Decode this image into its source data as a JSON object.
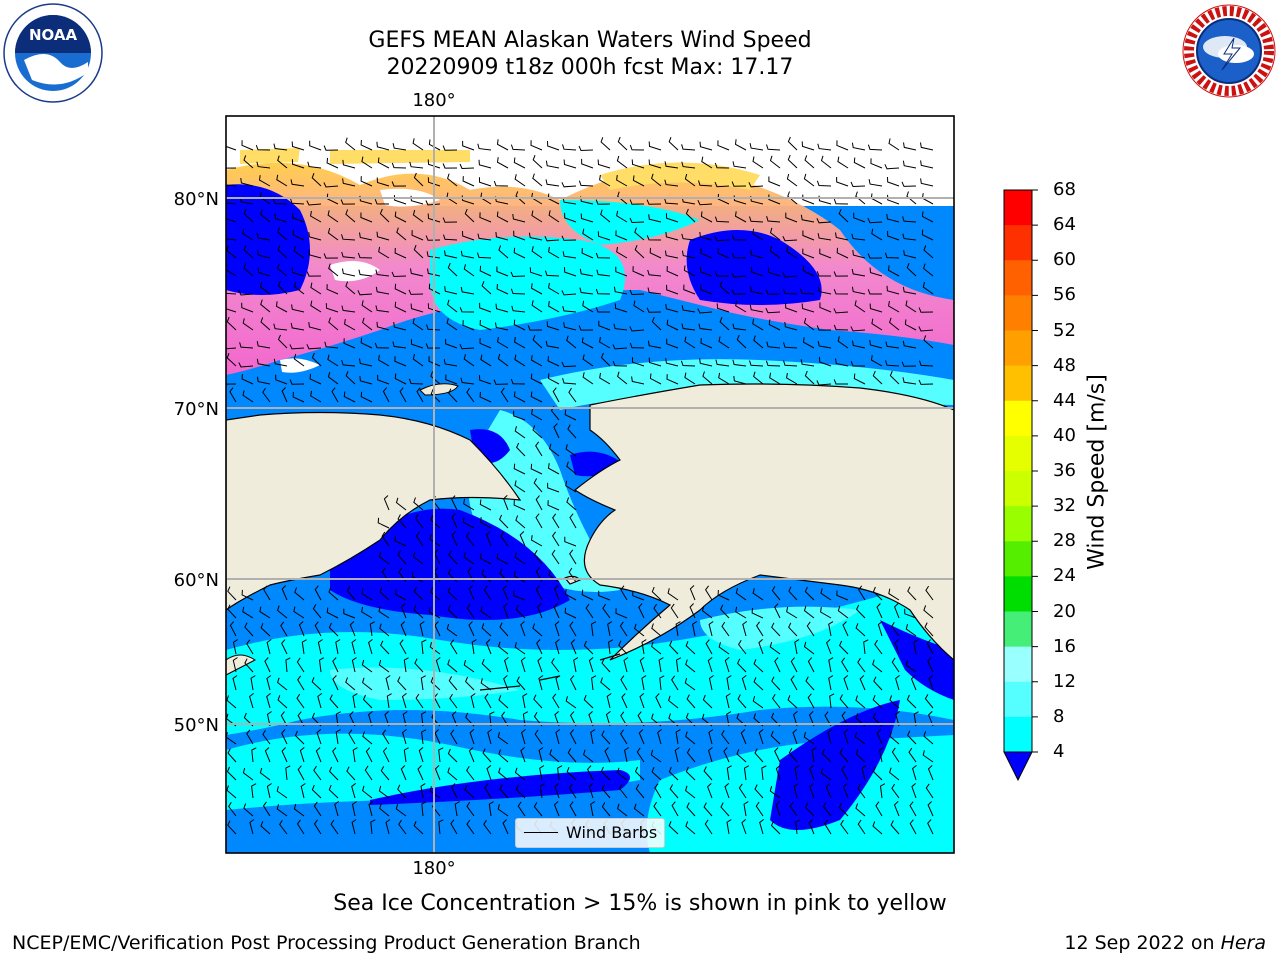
{
  "title": {
    "line1": "GEFS MEAN Alaskan Waters Wind Speed",
    "line2": "20220909 t18z 000h fcst   Max: 17.17"
  },
  "map": {
    "lon_label_top": "180°",
    "lon_label_bottom": "180°",
    "lat_labels": [
      "80°N",
      "70°N",
      "60°N",
      "50°N"
    ],
    "legend_label": "Wind Barbs",
    "land_color": "#efecdc",
    "ice_colors": [
      "#ff66cc",
      "#ff99cc",
      "#ffcc66",
      "#ffff66"
    ]
  },
  "colorbar": {
    "label": "Wind Speed [m/s]",
    "ticks": [
      "68",
      "64",
      "60",
      "56",
      "52",
      "48",
      "44",
      "40",
      "36",
      "32",
      "28",
      "24",
      "20",
      "16",
      "12",
      "8",
      "4"
    ],
    "colors": [
      "#ff0000",
      "#ff3000",
      "#ff6000",
      "#ff8000",
      "#ffa000",
      "#ffc000",
      "#ffff00",
      "#e6ff00",
      "#ccff00",
      "#99ff00",
      "#55ee00",
      "#00dd00",
      "#44ee77",
      "#99ffff",
      "#55ffff",
      "#00ffff",
      "#0088ff"
    ],
    "under_color": "#0000ff"
  },
  "footer": {
    "ice_note": "Sea Ice Concentration > 15% is shown in pink to yellow",
    "credit": "NCEP/EMC/Verification Post Processing Product Generation Branch",
    "date": "12 Sep 2022 on",
    "host": "Hera"
  },
  "logos": {
    "noaa_text": "NOAA",
    "nws_text": "NATIONAL WEATHER SERVICE"
  }
}
